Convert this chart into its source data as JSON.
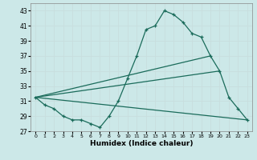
{
  "title": "",
  "xlabel": "Humidex (Indice chaleur)",
  "ylabel": "",
  "background_color": "#cce8e8",
  "grid_color": "#c8dede",
  "line_color": "#1a6b5a",
  "xlim": [
    -0.5,
    23.5
  ],
  "ylim": [
    27,
    44
  ],
  "yticks": [
    27,
    29,
    31,
    33,
    35,
    37,
    39,
    41,
    43
  ],
  "xticks": [
    0,
    1,
    2,
    3,
    4,
    5,
    6,
    7,
    8,
    9,
    10,
    11,
    12,
    13,
    14,
    15,
    16,
    17,
    18,
    19,
    20,
    21,
    22,
    23
  ],
  "series1_x": [
    0,
    1,
    2,
    3,
    4,
    5,
    6,
    7,
    8,
    9,
    10,
    11,
    12,
    13,
    14,
    15,
    16,
    17,
    18,
    19,
    20,
    21,
    22,
    23
  ],
  "series1_y": [
    31.5,
    30.5,
    30.0,
    29.0,
    28.5,
    28.5,
    28.0,
    27.5,
    29.0,
    31.0,
    34.0,
    37.0,
    40.5,
    41.0,
    43.0,
    42.5,
    41.5,
    40.0,
    39.5,
    37.0,
    35.0,
    31.5,
    30.0,
    28.5
  ],
  "line2_x": [
    0,
    19
  ],
  "line2_y": [
    31.5,
    37.0
  ],
  "line3_x": [
    0,
    20
  ],
  "line3_y": [
    31.5,
    35.0
  ],
  "line4_x": [
    0,
    23
  ],
  "line4_y": [
    31.5,
    28.5
  ]
}
